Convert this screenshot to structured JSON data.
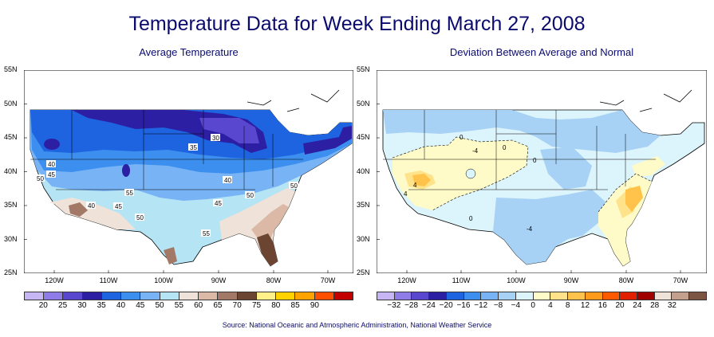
{
  "title": "Temperature Data for Week Ending March 27, 2008",
  "left_map": {
    "subtitle": "Average Temperature",
    "legend": {
      "labels": [
        "20",
        "25",
        "30",
        "35",
        "40",
        "45",
        "50",
        "55",
        "60",
        "65",
        "70",
        "75",
        "80",
        "85",
        "90"
      ],
      "colors": [
        "#c7b6f4",
        "#8f7ce8",
        "#5a47cf",
        "#2c1fa3",
        "#1e63e0",
        "#3c8fee",
        "#78b4f5",
        "#b5e4f5",
        "#efe2d8",
        "#dbb9a6",
        "#a27866",
        "#6c4432",
        "#fff08a",
        "#ffd200",
        "#ffa300",
        "#ff4f00",
        "#c20000"
      ]
    },
    "contours": [
      "30",
      "35",
      "40",
      "45",
      "50",
      "55",
      "40",
      "45",
      "40",
      "50",
      "45",
      "50",
      "55",
      "50"
    ]
  },
  "right_map": {
    "subtitle": "Deviation Between Average and Normal",
    "legend": {
      "labels": [
        "−32",
        "−28",
        "−24",
        "−20",
        "−16",
        "−12",
        "−8",
        "−4",
        "0",
        "4",
        "8",
        "12",
        "16",
        "20",
        "24",
        "28",
        "32"
      ],
      "colors": [
        "#c7b6f4",
        "#8f7ce8",
        "#5a47cf",
        "#2c1fa3",
        "#1e63e0",
        "#3c8fee",
        "#78b4f5",
        "#a7d2f5",
        "#dcf4fb",
        "#fffbc8",
        "#ffe38a",
        "#ffc24a",
        "#ff9a1a",
        "#ff5a00",
        "#e02000",
        "#a00000",
        "#efe2d8",
        "#c3a08e",
        "#7d5543"
      ]
    },
    "contours": [
      "0",
      "0",
      "-4",
      "0",
      "-4",
      "0",
      "4",
      "4"
    ]
  },
  "axes": {
    "lat_ticks": [
      "55N",
      "50N",
      "45N",
      "40N",
      "35N",
      "30N",
      "25N"
    ],
    "lon_ticks": [
      "120W",
      "110W",
      "100W",
      "90W",
      "80W",
      "70W"
    ]
  },
  "source": "Source:  National Oceanic and Atmospheric Administration, National Weather Service"
}
